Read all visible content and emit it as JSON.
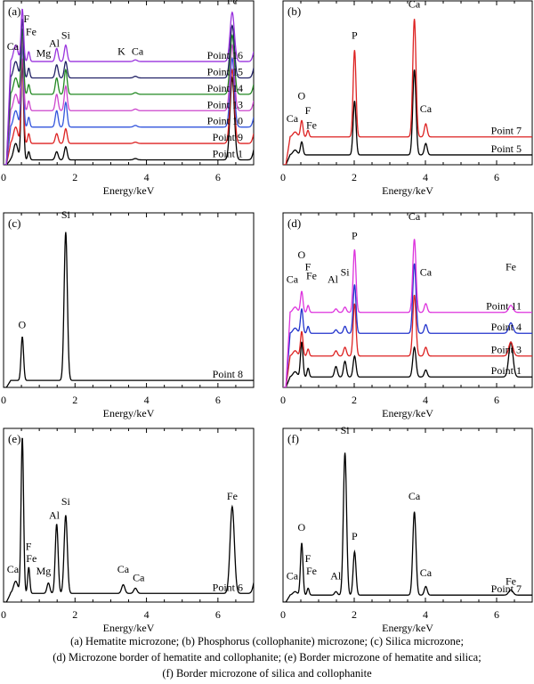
{
  "chart_data": [
    {
      "id": "a",
      "panel_label": "(a)",
      "type": "line",
      "xlabel": "Energy/keV",
      "xlim": [
        0,
        7
      ],
      "xticks": [
        0,
        2,
        4,
        6
      ],
      "peak_labels": [
        {
          "text": "Ca",
          "x": 0.26,
          "at": 0.7
        },
        {
          "text": "F",
          "x": 0.64,
          "at": 0.87
        },
        {
          "text": "Fe",
          "x": 0.77,
          "at": 0.79
        },
        {
          "text": "Mg",
          "x": 1.12,
          "at": 0.66
        },
        {
          "text": "Al",
          "x": 1.42,
          "at": 0.72
        },
        {
          "text": "Si",
          "x": 1.74,
          "at": 0.77
        },
        {
          "text": "K",
          "x": 3.3,
          "at": 0.67
        },
        {
          "text": "Ca",
          "x": 3.75,
          "at": 0.67
        },
        {
          "text": "Fe",
          "x": 6.4,
          "at": 0.98
        }
      ],
      "series": [
        {
          "name": "Point 1",
          "color": "#000000",
          "base": 0.03,
          "peaks": [
            [
              0.34,
              0.1,
              0.06
            ],
            [
              0.525,
              0.6,
              0.035
            ],
            [
              0.705,
              0.05,
              0.03
            ],
            [
              1.487,
              0.05,
              0.04
            ],
            [
              1.74,
              0.08,
              0.04
            ],
            [
              3.69,
              0.008,
              0.05
            ],
            [
              6.4,
              0.5,
              0.06
            ],
            [
              7.06,
              0.1,
              0.06
            ]
          ]
        },
        {
          "name": "Point 9",
          "color": "#dd2222",
          "base": 0.13,
          "peaks": [
            [
              0.34,
              0.1,
              0.06
            ],
            [
              0.525,
              0.52,
              0.035
            ],
            [
              0.705,
              0.06,
              0.03
            ],
            [
              1.487,
              0.06,
              0.04
            ],
            [
              1.74,
              0.09,
              0.04
            ],
            [
              3.69,
              0.008,
              0.05
            ],
            [
              6.4,
              0.45,
              0.06
            ],
            [
              7.06,
              0.1,
              0.06
            ]
          ]
        },
        {
          "name": "Point 10",
          "color": "#3355dd",
          "base": 0.23,
          "peaks": [
            [
              0.34,
              0.1,
              0.06
            ],
            [
              0.525,
              0.5,
              0.035
            ],
            [
              0.705,
              0.06,
              0.03
            ],
            [
              1.487,
              0.1,
              0.04
            ],
            [
              1.74,
              0.15,
              0.04
            ],
            [
              3.69,
              0.01,
              0.05
            ],
            [
              6.4,
              0.42,
              0.06
            ],
            [
              7.06,
              0.1,
              0.06
            ]
          ]
        },
        {
          "name": "Point 13",
          "color": "#cc44cc",
          "base": 0.33,
          "peaks": [
            [
              0.34,
              0.1,
              0.06
            ],
            [
              0.525,
              0.45,
              0.035
            ],
            [
              0.705,
              0.06,
              0.03
            ],
            [
              1.487,
              0.1,
              0.04
            ],
            [
              1.74,
              0.15,
              0.04
            ],
            [
              3.69,
              0.01,
              0.05
            ],
            [
              6.4,
              0.4,
              0.06
            ],
            [
              7.06,
              0.1,
              0.06
            ]
          ]
        },
        {
          "name": "Point 14",
          "color": "#228822",
          "base": 0.43,
          "peaks": [
            [
              0.34,
              0.1,
              0.06
            ],
            [
              0.525,
              0.4,
              0.035
            ],
            [
              0.705,
              0.06,
              0.03
            ],
            [
              1.487,
              0.1,
              0.04
            ],
            [
              1.74,
              0.15,
              0.04
            ],
            [
              3.69,
              0.01,
              0.05
            ],
            [
              6.4,
              0.36,
              0.06
            ],
            [
              7.06,
              0.1,
              0.06
            ]
          ]
        },
        {
          "name": "Point 15",
          "color": "#222266",
          "base": 0.53,
          "peaks": [
            [
              0.34,
              0.1,
              0.06
            ],
            [
              0.525,
              0.36,
              0.035
            ],
            [
              0.705,
              0.06,
              0.03
            ],
            [
              1.487,
              0.08,
              0.04
            ],
            [
              1.74,
              0.1,
              0.04
            ],
            [
              3.69,
              0.01,
              0.05
            ],
            [
              6.4,
              0.32,
              0.06
            ],
            [
              7.06,
              0.1,
              0.06
            ]
          ]
        },
        {
          "name": "Point 16",
          "color": "#9933dd",
          "base": 0.63,
          "peaks": [
            [
              0.34,
              0.1,
              0.06
            ],
            [
              0.525,
              0.32,
              0.035
            ],
            [
              0.705,
              0.06,
              0.03
            ],
            [
              1.487,
              0.08,
              0.04
            ],
            [
              1.74,
              0.1,
              0.04
            ],
            [
              3.69,
              0.01,
              0.05
            ],
            [
              6.4,
              0.3,
              0.06
            ],
            [
              7.06,
              0.1,
              0.06
            ]
          ]
        }
      ]
    },
    {
      "id": "b",
      "panel_label": "(b)",
      "type": "line",
      "xlabel": "Energy/keV",
      "xlim": [
        0,
        7
      ],
      "xticks": [
        0,
        2,
        4,
        6
      ],
      "peak_labels": [
        {
          "text": "Ca",
          "x": 0.26,
          "at": 0.26
        },
        {
          "text": "O",
          "x": 0.52,
          "at": 0.4
        },
        {
          "text": "F",
          "x": 0.7,
          "at": 0.31
        },
        {
          "text": "Fe",
          "x": 0.8,
          "at": 0.22
        },
        {
          "text": "P",
          "x": 2.01,
          "at": 0.77
        },
        {
          "text": "Ca",
          "x": 3.69,
          "at": 0.96
        },
        {
          "text": "Ca",
          "x": 4.01,
          "at": 0.32
        }
      ],
      "series": [
        {
          "name": "Point 5",
          "color": "#000000",
          "base": 0.06,
          "peaks": [
            [
              0.34,
              0.03,
              0.06
            ],
            [
              0.525,
              0.08,
              0.035
            ],
            [
              2.01,
              0.33,
              0.04
            ],
            [
              3.69,
              0.52,
              0.045
            ],
            [
              4.01,
              0.07,
              0.04
            ]
          ]
        },
        {
          "name": "Point 7",
          "color": "#dd2222",
          "base": 0.17,
          "peaks": [
            [
              0.34,
              0.03,
              0.06
            ],
            [
              0.525,
              0.1,
              0.035
            ],
            [
              0.7,
              0.04,
              0.03
            ],
            [
              2.01,
              0.53,
              0.04
            ],
            [
              3.69,
              0.72,
              0.045
            ],
            [
              4.01,
              0.08,
              0.04
            ]
          ]
        }
      ]
    },
    {
      "id": "c",
      "panel_label": "(c)",
      "type": "line",
      "xlabel": "Energy/keV",
      "xlim": [
        0,
        7
      ],
      "xticks": [
        0,
        2,
        4,
        6
      ],
      "peak_labels": [
        {
          "text": "O",
          "x": 0.52,
          "at": 0.34
        },
        {
          "text": "Si",
          "x": 1.74,
          "at": 0.97
        }
      ],
      "series": [
        {
          "name": "Point 8",
          "color": "#000000",
          "base": 0.04,
          "peaks": [
            [
              0.525,
              0.25,
              0.035
            ],
            [
              1.74,
              0.85,
              0.045
            ]
          ]
        }
      ]
    },
    {
      "id": "d",
      "panel_label": "(d)",
      "type": "line",
      "xlabel": "Energy/keV",
      "xlim": [
        0,
        7
      ],
      "xticks": [
        0,
        2,
        4,
        6
      ],
      "peak_labels": [
        {
          "text": "Ca",
          "x": 0.26,
          "at": 0.6
        },
        {
          "text": "O",
          "x": 0.52,
          "at": 0.74
        },
        {
          "text": "F",
          "x": 0.7,
          "at": 0.67
        },
        {
          "text": "Fe",
          "x": 0.8,
          "at": 0.62
        },
        {
          "text": "Al",
          "x": 1.4,
          "at": 0.6
        },
        {
          "text": "Si",
          "x": 1.74,
          "at": 0.64
        },
        {
          "text": "P",
          "x": 2.01,
          "at": 0.85
        },
        {
          "text": "Ca",
          "x": 3.69,
          "at": 0.96
        },
        {
          "text": "Ca",
          "x": 4.01,
          "at": 0.64
        },
        {
          "text": "Fe",
          "x": 6.4,
          "at": 0.67
        }
      ],
      "series": [
        {
          "name": "Point 1",
          "color": "#000000",
          "base": 0.06,
          "peaks": [
            [
              0.34,
              0.03,
              0.06
            ],
            [
              0.525,
              0.2,
              0.035
            ],
            [
              0.705,
              0.05,
              0.03
            ],
            [
              1.487,
              0.06,
              0.04
            ],
            [
              1.74,
              0.09,
              0.04
            ],
            [
              2.01,
              0.12,
              0.04
            ],
            [
              3.69,
              0.17,
              0.045
            ],
            [
              4.01,
              0.04,
              0.04
            ],
            [
              6.4,
              0.2,
              0.06
            ]
          ]
        },
        {
          "name": "Point 3",
          "color": "#dd2222",
          "base": 0.18,
          "peaks": [
            [
              0.34,
              0.03,
              0.06
            ],
            [
              0.525,
              0.14,
              0.035
            ],
            [
              0.705,
              0.04,
              0.03
            ],
            [
              1.487,
              0.03,
              0.04
            ],
            [
              1.74,
              0.05,
              0.04
            ],
            [
              2.01,
              0.3,
              0.04
            ],
            [
              3.69,
              0.35,
              0.045
            ],
            [
              4.01,
              0.05,
              0.04
            ],
            [
              6.4,
              0.08,
              0.06
            ]
          ]
        },
        {
          "name": "Point 4",
          "color": "#2233cc",
          "base": 0.31,
          "peaks": [
            [
              0.34,
              0.03,
              0.06
            ],
            [
              0.525,
              0.14,
              0.035
            ],
            [
              0.705,
              0.04,
              0.03
            ],
            [
              1.487,
              0.02,
              0.04
            ],
            [
              1.74,
              0.04,
              0.04
            ],
            [
              2.01,
              0.28,
              0.04
            ],
            [
              3.69,
              0.4,
              0.045
            ],
            [
              4.01,
              0.05,
              0.04
            ],
            [
              6.4,
              0.06,
              0.06
            ]
          ]
        },
        {
          "name": "Point 11",
          "color": "#dd33dd",
          "base": 0.43,
          "peaks": [
            [
              0.34,
              0.03,
              0.06
            ],
            [
              0.525,
              0.12,
              0.035
            ],
            [
              0.705,
              0.04,
              0.03
            ],
            [
              1.487,
              0.02,
              0.04
            ],
            [
              1.74,
              0.03,
              0.04
            ],
            [
              2.01,
              0.36,
              0.04
            ],
            [
              3.69,
              0.42,
              0.045
            ],
            [
              4.01,
              0.05,
              0.04
            ],
            [
              6.4,
              0.04,
              0.06
            ]
          ]
        }
      ]
    },
    {
      "id": "e",
      "panel_label": "(e)",
      "type": "line",
      "xlabel": "Energy/keV",
      "xlim": [
        0,
        7
      ],
      "xticks": [
        0,
        2,
        4,
        6
      ],
      "peak_labels": [
        {
          "text": "Ca",
          "x": 0.26,
          "at": 0.17
        },
        {
          "text": "F",
          "x": 0.7,
          "at": 0.3
        },
        {
          "text": "Fe",
          "x": 0.78,
          "at": 0.23
        },
        {
          "text": "Mg",
          "x": 1.12,
          "at": 0.16
        },
        {
          "text": "Al",
          "x": 1.42,
          "at": 0.48
        },
        {
          "text": "Si",
          "x": 1.74,
          "at": 0.56
        },
        {
          "text": "Ca",
          "x": 3.35,
          "at": 0.17
        },
        {
          "text": "Ca",
          "x": 3.78,
          "at": 0.12
        },
        {
          "text": "Fe",
          "x": 6.4,
          "at": 0.59
        }
      ],
      "series": [
        {
          "name": "Point 6",
          "color": "#000000",
          "base": 0.05,
          "peaks": [
            [
              0.34,
              0.07,
              0.06
            ],
            [
              0.525,
              0.9,
              0.035
            ],
            [
              0.705,
              0.15,
              0.03
            ],
            [
              1.255,
              0.06,
              0.04
            ],
            [
              1.487,
              0.4,
              0.04
            ],
            [
              1.74,
              0.45,
              0.045
            ],
            [
              3.35,
              0.05,
              0.045
            ],
            [
              3.69,
              0.03,
              0.045
            ],
            [
              6.4,
              0.5,
              0.06
            ],
            [
              7.06,
              0.1,
              0.06
            ]
          ]
        }
      ]
    },
    {
      "id": "f",
      "panel_label": "(f)",
      "type": "line",
      "xlabel": "Energy/keV",
      "xlim": [
        0,
        7
      ],
      "xticks": [
        0,
        2,
        4,
        6
      ],
      "peak_labels": [
        {
          "text": "Ca",
          "x": 0.26,
          "at": 0.13
        },
        {
          "text": "O",
          "x": 0.52,
          "at": 0.41
        },
        {
          "text": "F",
          "x": 0.7,
          "at": 0.23
        },
        {
          "text": "Fe",
          "x": 0.8,
          "at": 0.16
        },
        {
          "text": "Al",
          "x": 1.48,
          "at": 0.13
        },
        {
          "text": "Si",
          "x": 1.74,
          "at": 0.97
        },
        {
          "text": "P",
          "x": 2.01,
          "at": 0.36
        },
        {
          "text": "Ca",
          "x": 3.69,
          "at": 0.59
        },
        {
          "text": "Ca",
          "x": 4.01,
          "at": 0.15
        },
        {
          "text": "Fe",
          "x": 6.4,
          "at": 0.1
        }
      ],
      "series": [
        {
          "name": "Point 7",
          "color": "#000000",
          "base": 0.04,
          "peaks": [
            [
              0.34,
              0.02,
              0.06
            ],
            [
              0.525,
              0.3,
              0.035
            ],
            [
              0.705,
              0.04,
              0.03
            ],
            [
              1.487,
              0.02,
              0.04
            ],
            [
              1.74,
              0.82,
              0.045
            ],
            [
              2.01,
              0.25,
              0.04
            ],
            [
              3.69,
              0.48,
              0.045
            ],
            [
              4.01,
              0.05,
              0.04
            ],
            [
              6.4,
              0.03,
              0.06
            ]
          ]
        }
      ]
    }
  ],
  "caption": {
    "line1": "(a) Hematite microzone; (b) Phosphorus (collophanite) microzone; (c) Silica microzone;",
    "line2": "(d) Microzone border of hematite and collophanite; (e) Border microzone of hematite and silica;",
    "line3": "(f) Border microzone of silica and collophanite"
  }
}
